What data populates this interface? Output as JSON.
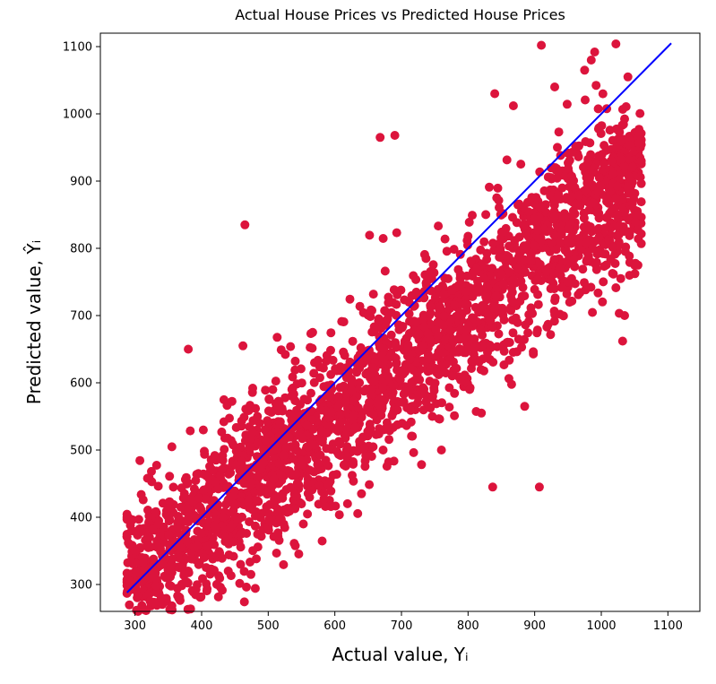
{
  "chart_data": {
    "type": "scatter",
    "title": "Actual House Prices vs Predicted House Prices",
    "xlabel": "Actual value, Yᵢ",
    "ylabel": "Predicted value, Ŷᵢ",
    "xlim": [
      248,
      1148
    ],
    "ylim": [
      260,
      1120
    ],
    "xticks": [
      "300",
      "400",
      "500",
      "600",
      "700",
      "800",
      "900",
      "1000",
      "1100"
    ],
    "yticks": [
      "300",
      "400",
      "500",
      "600",
      "700",
      "800",
      "900",
      "1000",
      "1100"
    ],
    "grid": false,
    "point_color": "#dc143c",
    "line_color": "#0000ff",
    "reference_line": {
      "x": [
        288,
        1105
      ],
      "y": [
        288,
        1105
      ]
    },
    "series": [
      {
        "label_points": [
          [
            465,
            835
          ],
          [
            668,
            965
          ],
          [
            690,
            968
          ],
          [
            910,
            1102
          ],
          [
            1022,
            1104
          ],
          [
            837,
            445
          ],
          [
            907,
            445
          ],
          [
            885,
            565
          ],
          [
            760,
            500
          ],
          [
            820,
            555
          ],
          [
            1035,
            700
          ],
          [
            1032,
            662
          ],
          [
            290,
            362
          ],
          [
            292,
            398
          ],
          [
            295,
            380
          ],
          [
            378,
            365
          ],
          [
            380,
            650
          ],
          [
            462,
            655
          ],
          [
            1050,
            775
          ],
          [
            1058,
            935
          ],
          [
            1060,
            930
          ],
          [
            1055,
            775
          ],
          [
            1040,
            1055
          ],
          [
            990,
            1092
          ],
          [
            985,
            1080
          ],
          [
            840,
            1030
          ],
          [
            868,
            1012
          ],
          [
            930,
            1040
          ],
          [
            975,
            1065
          ],
          [
            640,
            435
          ]
        ]
      }
    ]
  }
}
